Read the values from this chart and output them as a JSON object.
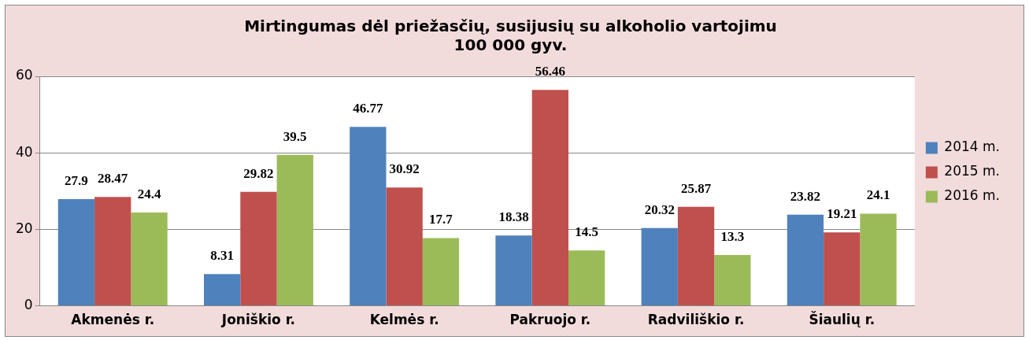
{
  "chart_data": {
    "type": "bar",
    "title": "Mirtingumas dėl priežasčių, susijusių su alkoholio vartojimu\n100 000 gyv.",
    "categories": [
      "Akmenės r.",
      "Joniškio r.",
      "Kelmės r.",
      "Pakruojo r.",
      "Radviliškio r.",
      "Šiaulių r."
    ],
    "series": [
      {
        "name": "2014 m.",
        "color": "#4f81bd",
        "values": [
          27.9,
          8.31,
          46.77,
          18.38,
          20.32,
          23.82
        ]
      },
      {
        "name": "2015 m.",
        "color": "#c0504d",
        "values": [
          28.47,
          29.82,
          30.92,
          56.46,
          25.87,
          19.21
        ]
      },
      {
        "name": "2016 m.",
        "color": "#9bbb59",
        "values": [
          24.4,
          39.5,
          17.7,
          14.5,
          13.3,
          24.1
        ]
      }
    ],
    "ylim": [
      0,
      60
    ],
    "yticks": [
      0,
      20,
      40,
      60
    ],
    "grid": "y",
    "legend": "right",
    "data_labels": true
  }
}
